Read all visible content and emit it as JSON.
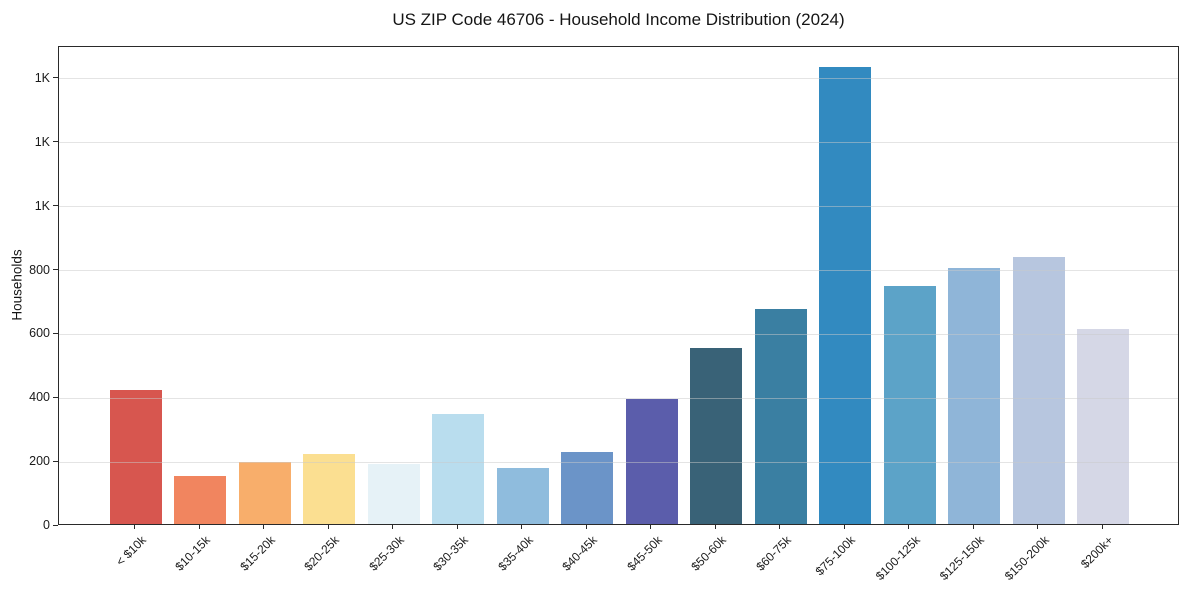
{
  "chart_data": {
    "type": "bar",
    "title": "US ZIP Code 46706 - Household Income Distribution (2024)",
    "xlabel": "",
    "ylabel": "Households",
    "ylim": [
      0,
      1500
    ],
    "grid": true,
    "legend": "none",
    "xtick_rotation": 45,
    "yticks": [
      {
        "value": 0,
        "label": "0"
      },
      {
        "value": 200,
        "label": "200"
      },
      {
        "value": 400,
        "label": "400"
      },
      {
        "value": 600,
        "label": "600"
      },
      {
        "value": 800,
        "label": "800"
      },
      {
        "value": 1000,
        "label": "1K"
      },
      {
        "value": 1200,
        "label": "1K"
      },
      {
        "value": 1400,
        "label": "1K"
      }
    ],
    "categories": [
      "< $10k",
      "$10-15k",
      "$15-20k",
      "$20-25k",
      "$25-30k",
      "$30-35k",
      "$35-40k",
      "$40-45k",
      "$45-50k",
      "$50-60k",
      "$60-75k",
      "$75-100k",
      "$100-125k",
      "$125-150k",
      "$150-200k",
      "$200k+"
    ],
    "values": [
      420,
      150,
      193,
      218,
      189,
      344,
      174,
      224,
      391,
      551,
      673,
      1430,
      745,
      801,
      836,
      610
    ],
    "bar_colors": [
      "#d7564f",
      "#f1855f",
      "#f8ae6b",
      "#fbdf91",
      "#e6f2f7",
      "#b9ddee",
      "#8fbcdd",
      "#6b94c8",
      "#5b5dab",
      "#396277",
      "#3a7fa2",
      "#328ac0",
      "#5ca3c8",
      "#8fb5d8",
      "#b7c6df",
      "#d5d7e6"
    ]
  }
}
